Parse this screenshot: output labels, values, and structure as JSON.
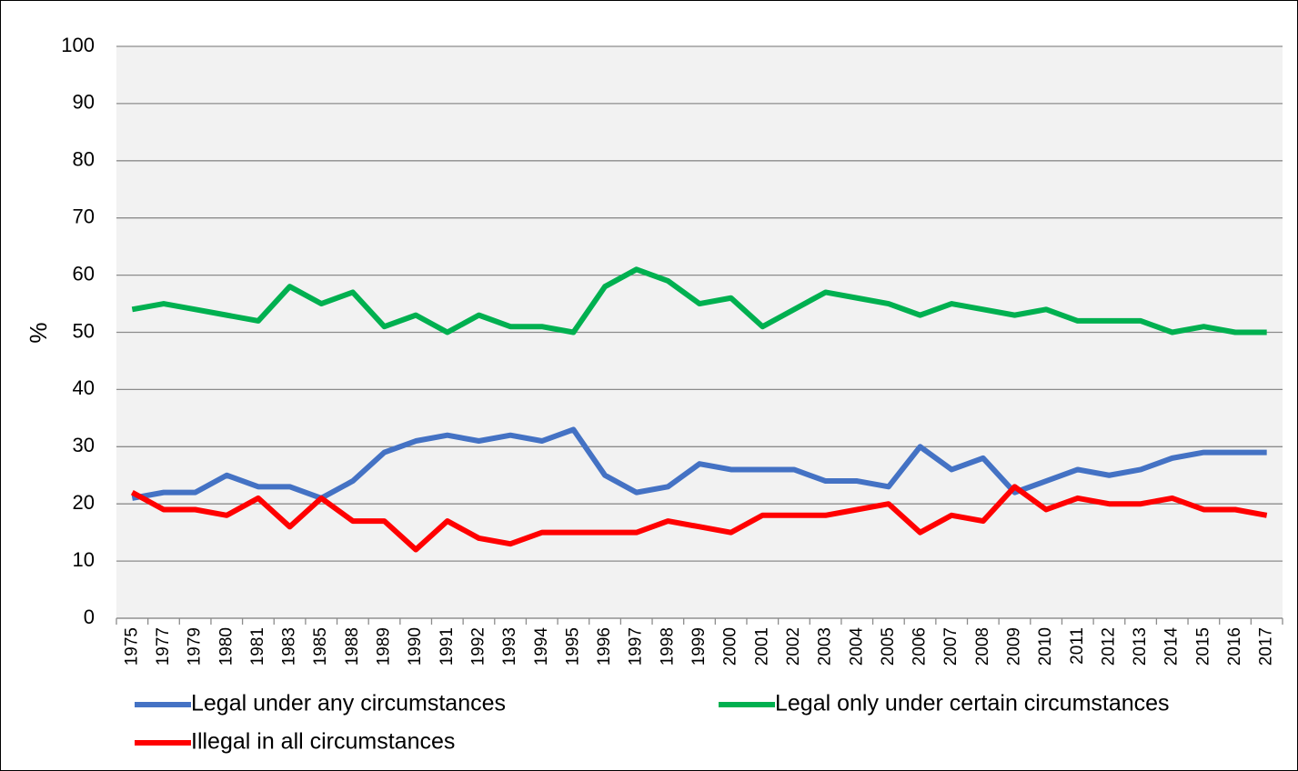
{
  "chart_data": {
    "type": "line",
    "y_label": "%",
    "categories": [
      "1975",
      "1977",
      "1979",
      "1980",
      "1981",
      "1983",
      "1985",
      "1988",
      "1989",
      "1990",
      "1991",
      "1992",
      "1993",
      "1994",
      "1995",
      "1996",
      "1997",
      "1998",
      "1999",
      "2000",
      "2001",
      "2002",
      "2003",
      "2004",
      "2005",
      "2006",
      "2007",
      "2008",
      "2009",
      "2010",
      "2011",
      "2012",
      "2013",
      "2014",
      "2015",
      "2016",
      "2017"
    ],
    "series": [
      {
        "name": "Legal under any circumstances",
        "color": "#4472c4",
        "values": [
          21,
          22,
          22,
          25,
          23,
          23,
          21,
          24,
          29,
          31,
          32,
          31,
          32,
          31,
          33,
          25,
          22,
          23,
          27,
          26,
          26,
          26,
          24,
          24,
          23,
          30,
          26,
          28,
          22,
          24,
          26,
          25,
          26,
          28,
          29,
          29,
          29
        ]
      },
      {
        "name": "Legal only under certain circumstances",
        "color": "#00b050",
        "values": [
          54,
          55,
          54,
          53,
          52,
          58,
          55,
          57,
          51,
          53,
          50,
          53,
          51,
          51,
          50,
          58,
          61,
          59,
          55,
          56,
          51,
          54,
          57,
          56,
          55,
          53,
          55,
          54,
          53,
          54,
          52,
          52,
          52,
          50,
          51,
          50,
          50
        ]
      },
      {
        "name": "Illegal in all circumstances",
        "color": "#ff0000",
        "values": [
          22,
          19,
          19,
          18,
          21,
          16,
          21,
          17,
          17,
          12,
          17,
          14,
          13,
          15,
          15,
          15,
          15,
          17,
          16,
          15,
          18,
          18,
          18,
          19,
          20,
          15,
          18,
          17,
          23,
          19,
          21,
          20,
          20,
          21,
          19,
          19,
          18
        ]
      }
    ],
    "ylim": [
      0,
      100
    ],
    "yticks": [
      0,
      10,
      20,
      30,
      40,
      50,
      60,
      70,
      80,
      90,
      100
    ],
    "grid": true,
    "legend": "bottom"
  }
}
